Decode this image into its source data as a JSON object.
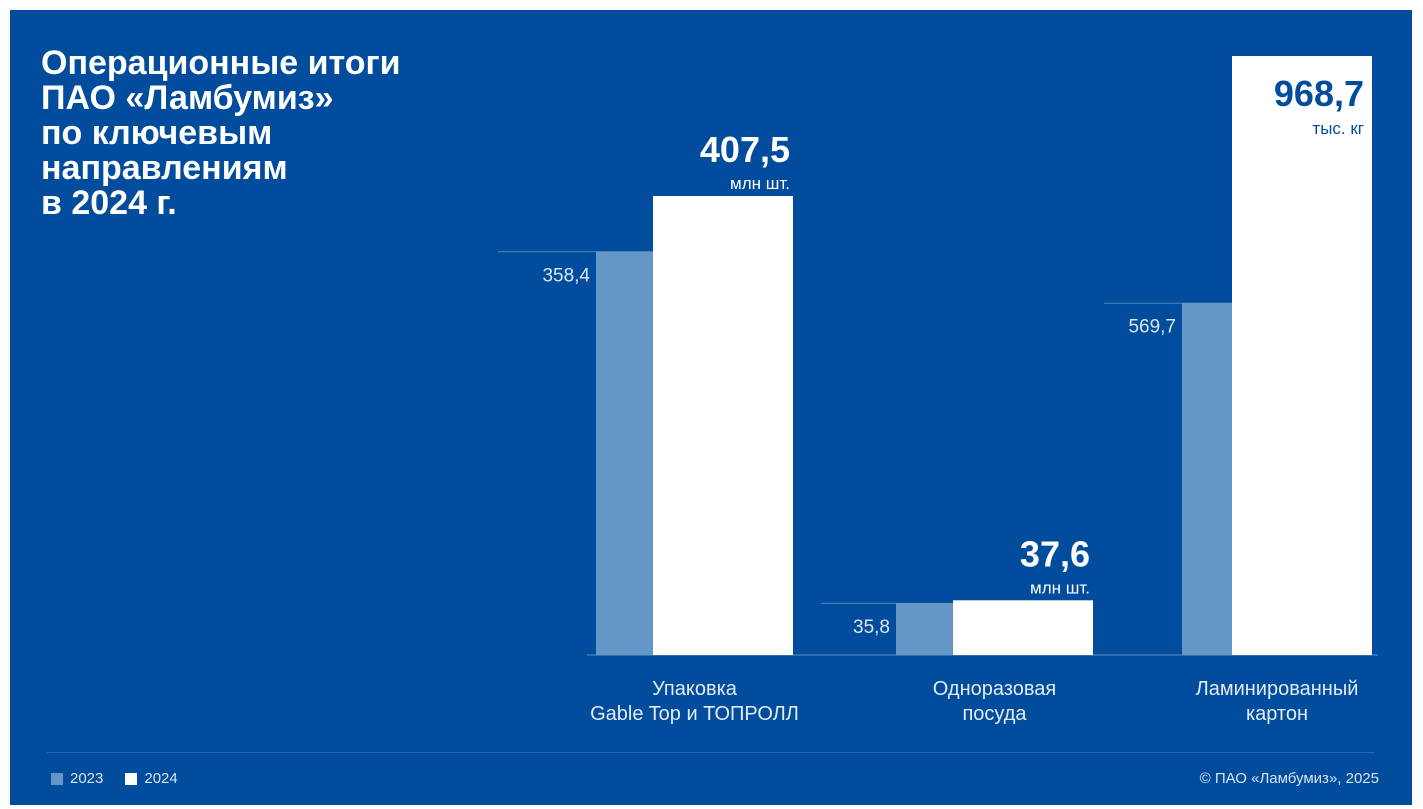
{
  "title": "Операционные итоги\nПАО «Ламбумиз»\nпо ключевым\nнаправлениям\nв 2024 г.",
  "legend": {
    "items": [
      {
        "label": "2023",
        "color": "#6496c6"
      },
      {
        "label": "2024",
        "color": "#ffffff"
      }
    ]
  },
  "copyright": "© ПАО «Ламбумиз», 2025",
  "chart_data": [
    {
      "type": "bar",
      "category": "Упаковка\nGable Top и ТОПРОЛЛ",
      "series": [
        {
          "name": "2023",
          "value": 358.4,
          "label": "358,4"
        },
        {
          "name": "2024",
          "value": 407.5,
          "label": "407,5",
          "unit": "млн шт."
        }
      ]
    },
    {
      "type": "bar",
      "category": "Одноразовая\nпосуда",
      "series": [
        {
          "name": "2023",
          "value": 35.8,
          "label": "35,8"
        },
        {
          "name": "2024",
          "value": 37.6,
          "label": "37,6",
          "unit": "млн шт."
        }
      ]
    },
    {
      "type": "bar",
      "category": "Ламинированный\nкартон",
      "series": [
        {
          "name": "2023",
          "value": 569.7,
          "label": "569,7"
        },
        {
          "name": "2024",
          "value": 968.7,
          "label": "968,7",
          "unit": "тыс. кг"
        }
      ]
    }
  ]
}
